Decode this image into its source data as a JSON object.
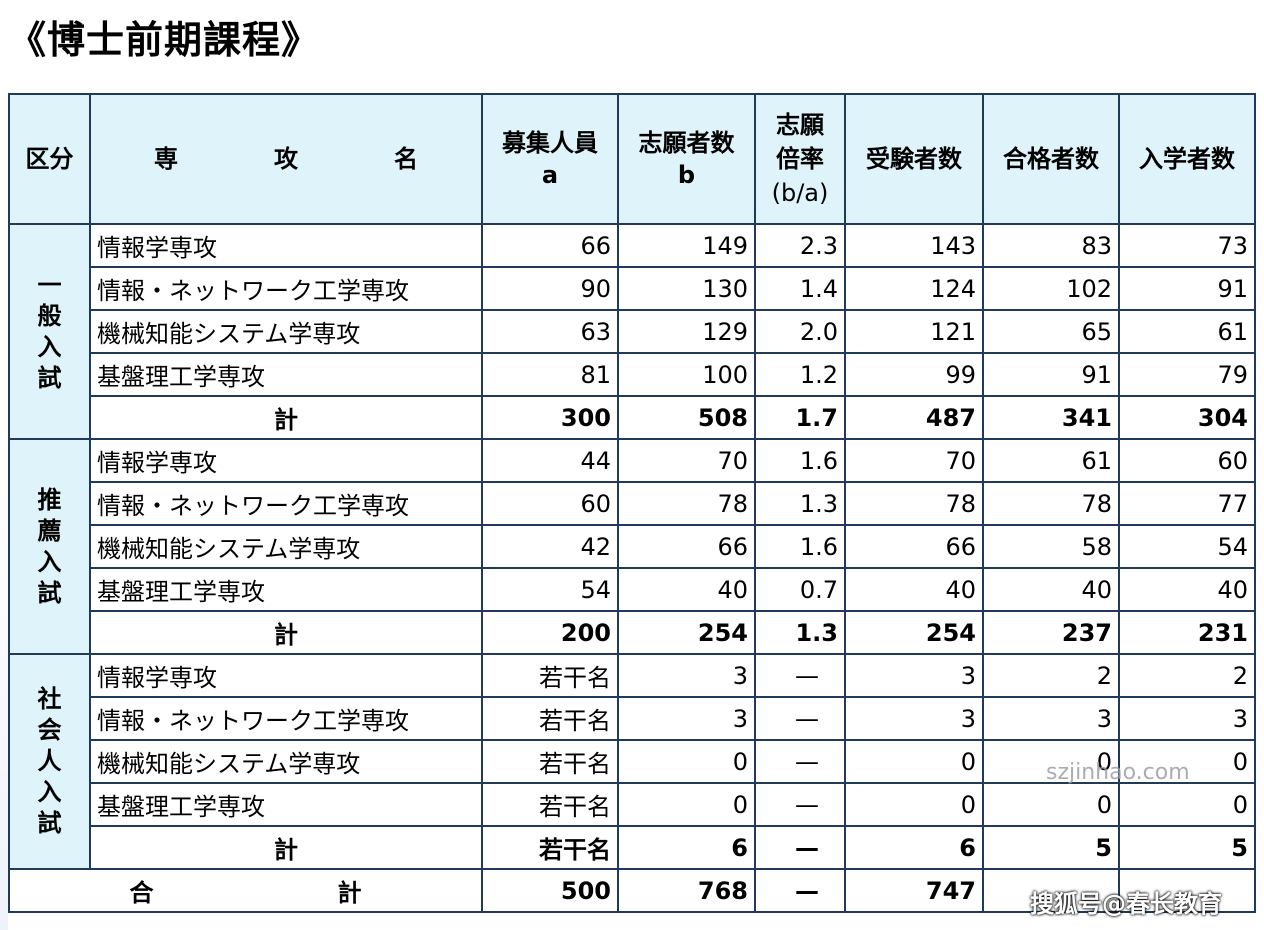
{
  "title": "《博士前期課程》",
  "headers": {
    "group": "区分",
    "major": "専　攻　名",
    "capacity_line1": "募集人員",
    "capacity_line2": "a",
    "applicants_line1": "志願者数",
    "applicants_line2": "b",
    "ratio_line1": "志願",
    "ratio_line2": "倍率",
    "ratio_line3": "(b/a)",
    "examinees": "受験者数",
    "passed": "合格者数",
    "enrolled": "入学者数"
  },
  "groups": [
    {
      "label": "一般入試",
      "rows": [
        {
          "name": "情報学専攻",
          "capacity": "66",
          "applicants": "149",
          "ratio": "2.3",
          "examinees": "143",
          "passed": "83",
          "enrolled": "73"
        },
        {
          "name": "情報・ネットワーク工学専攻",
          "capacity": "90",
          "applicants": "130",
          "ratio": "1.4",
          "examinees": "124",
          "passed": "102",
          "enrolled": "91"
        },
        {
          "name": "機械知能システム学専攻",
          "capacity": "63",
          "applicants": "129",
          "ratio": "2.0",
          "examinees": "121",
          "passed": "65",
          "enrolled": "61"
        },
        {
          "name": "基盤理工学専攻",
          "capacity": "81",
          "applicants": "100",
          "ratio": "1.2",
          "examinees": "99",
          "passed": "91",
          "enrolled": "79"
        }
      ],
      "subtotal": {
        "label": "計",
        "capacity": "300",
        "applicants": "508",
        "ratio": "1.7",
        "examinees": "487",
        "passed": "341",
        "enrolled": "304"
      }
    },
    {
      "label": "推薦入試",
      "rows": [
        {
          "name": "情報学専攻",
          "capacity": "44",
          "applicants": "70",
          "ratio": "1.6",
          "examinees": "70",
          "passed": "61",
          "enrolled": "60"
        },
        {
          "name": "情報・ネットワーク工学専攻",
          "capacity": "60",
          "applicants": "78",
          "ratio": "1.3",
          "examinees": "78",
          "passed": "78",
          "enrolled": "77"
        },
        {
          "name": "機械知能システム学専攻",
          "capacity": "42",
          "applicants": "66",
          "ratio": "1.6",
          "examinees": "66",
          "passed": "58",
          "enrolled": "54"
        },
        {
          "name": "基盤理工学専攻",
          "capacity": "54",
          "applicants": "40",
          "ratio": "0.7",
          "examinees": "40",
          "passed": "40",
          "enrolled": "40"
        }
      ],
      "subtotal": {
        "label": "計",
        "capacity": "200",
        "applicants": "254",
        "ratio": "1.3",
        "examinees": "254",
        "passed": "237",
        "enrolled": "231"
      }
    },
    {
      "label": "社会人入試",
      "rows": [
        {
          "name": "情報学専攻",
          "capacity": "若干名",
          "applicants": "3",
          "ratio": "—",
          "examinees": "3",
          "passed": "2",
          "enrolled": "2"
        },
        {
          "name": "情報・ネットワーク工学専攻",
          "capacity": "若干名",
          "applicants": "3",
          "ratio": "—",
          "examinees": "3",
          "passed": "3",
          "enrolled": "3"
        },
        {
          "name": "機械知能システム学専攻",
          "capacity": "若干名",
          "applicants": "0",
          "ratio": "—",
          "examinees": "0",
          "passed": "0",
          "enrolled": "0"
        },
        {
          "name": "基盤理工学専攻",
          "capacity": "若干名",
          "applicants": "0",
          "ratio": "—",
          "examinees": "0",
          "passed": "0",
          "enrolled": "0"
        }
      ],
      "subtotal": {
        "label": "計",
        "capacity": "若干名",
        "applicants": "6",
        "ratio": "—",
        "examinees": "6",
        "passed": "5",
        "enrolled": "5"
      }
    }
  ],
  "grand_total": {
    "label": "合　計",
    "capacity": "500",
    "applicants": "768",
    "ratio": "—",
    "examinees": "747",
    "passed": "",
    "enrolled": ""
  },
  "watermarks": {
    "site": "szjinhao.com",
    "sohu": "搜狐号@春长教育"
  }
}
